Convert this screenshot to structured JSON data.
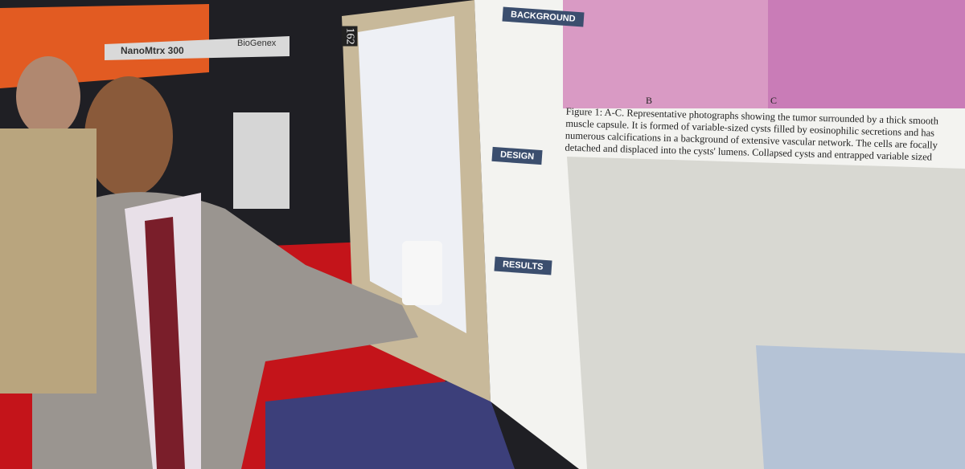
{
  "booth": {
    "sign": "NanoMtrx 300",
    "brand": "BioGenex"
  },
  "poster": {
    "number": "162",
    "sections": [
      "BACKGROUND",
      "DESIGN",
      "RESULTS"
    ],
    "figure_caption": "Figure 1: A-C. Representative photographs showing the tumor surrounded by a thick smooth muscle capsule. It is formed of variable-sized cysts filled by eosinophilic secretions and has numerous calcifications in a background of extensive vascular network. The cells are focally detached and displaced into the cysts' lumens. Collapsed cysts and entrapped variable sized tubules are seen between the larger cysts.",
    "panel_labels": [
      "B",
      "C"
    ]
  }
}
